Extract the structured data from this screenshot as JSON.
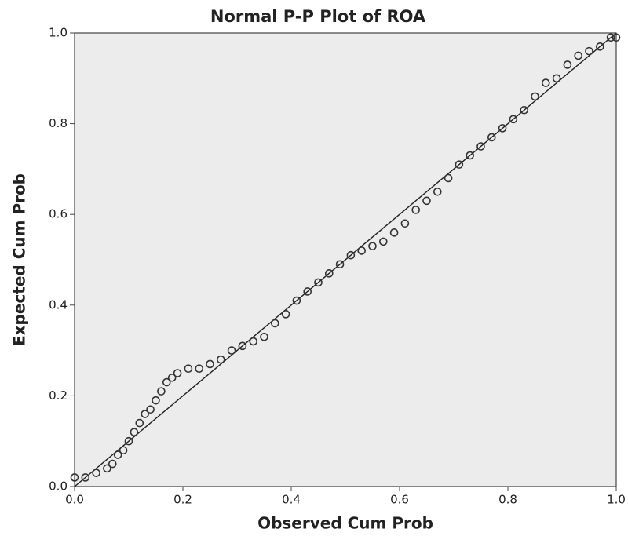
{
  "chart_data": {
    "type": "scatter",
    "title": "Normal P-P Plot of ROA",
    "x_label": "Observed Cum Prob",
    "y_label": "Expected Cum Prob",
    "xlim": [
      0,
      1
    ],
    "ylim": [
      0,
      1
    ],
    "xticks": [
      {
        "value": 0,
        "label": "0.0"
      },
      0.2,
      0.4,
      0.6,
      0.8,
      {
        "value": 1,
        "label": "1.0"
      }
    ],
    "yticks": [
      {
        "value": 0,
        "label": "0.0"
      },
      0.2,
      0.4,
      0.6,
      0.8,
      {
        "value": 1,
        "label": "1.0"
      }
    ],
    "color": "#333333",
    "reference_line": true,
    "x": [
      0.0,
      0.02,
      0.04,
      0.06,
      0.07,
      0.08,
      0.09,
      0.1,
      0.11,
      0.12,
      0.13,
      0.14,
      0.15,
      0.16,
      0.17,
      0.18,
      0.19,
      0.21,
      0.23,
      0.25,
      0.27,
      0.29,
      0.31,
      0.33,
      0.35,
      0.37,
      0.39,
      0.41,
      0.43,
      0.45,
      0.47,
      0.49,
      0.51,
      0.53,
      0.55,
      0.57,
      0.59,
      0.61,
      0.63,
      0.65,
      0.67,
      0.69,
      0.71,
      0.73,
      0.75,
      0.77,
      0.79,
      0.81,
      0.83,
      0.85,
      0.87,
      0.89,
      0.91,
      0.93,
      0.95,
      0.97,
      0.99,
      1.0
    ],
    "values": [
      0.02,
      0.02,
      0.03,
      0.04,
      0.05,
      0.07,
      0.08,
      0.1,
      0.12,
      0.14,
      0.16,
      0.17,
      0.19,
      0.21,
      0.23,
      0.24,
      0.25,
      0.26,
      0.26,
      0.27,
      0.28,
      0.3,
      0.31,
      0.32,
      0.33,
      0.36,
      0.38,
      0.41,
      0.43,
      0.45,
      0.47,
      0.49,
      0.51,
      0.52,
      0.53,
      0.54,
      0.56,
      0.58,
      0.61,
      0.63,
      0.65,
      0.68,
      0.71,
      0.73,
      0.75,
      0.77,
      0.79,
      0.81,
      0.83,
      0.86,
      0.89,
      0.9,
      0.93,
      0.95,
      0.96,
      0.97,
      0.99,
      0.99
    ]
  }
}
